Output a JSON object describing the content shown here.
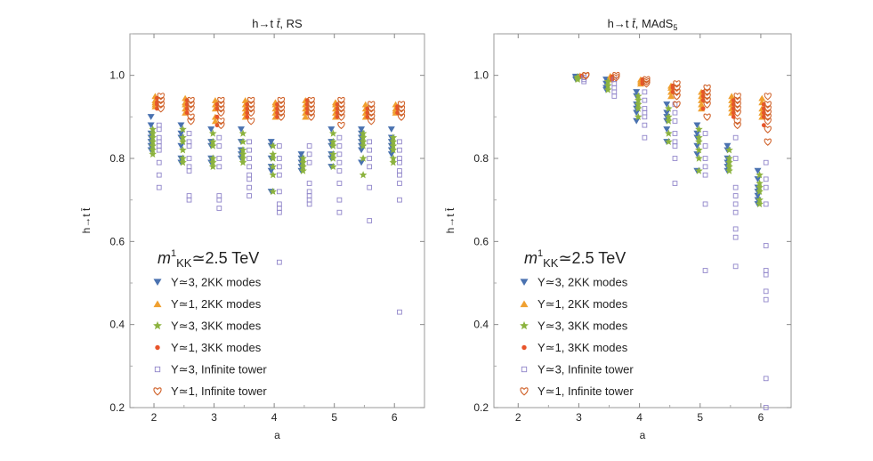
{
  "chart_data": [
    {
      "type": "scatter",
      "title_prefix": "h→t ",
      "title_tbar": "t̄",
      "title_suffix": ", RS",
      "xlabel": "a",
      "ylabel": "h→t t̄",
      "xlim": [
        1.6,
        6.5
      ],
      "ylim": [
        0.2,
        1.1
      ],
      "xticks": [
        2,
        3,
        4,
        5,
        6
      ],
      "yticks": [
        0.2,
        0.4,
        0.6,
        0.8,
        1.0
      ],
      "ytick_labels": [
        "0.2",
        "0.4",
        "0.6",
        "0.8",
        "1.0"
      ],
      "annotation": {
        "m": "m",
        "sup": "1",
        "sub": "KK",
        "rest": "≃2.5 TeV"
      },
      "groups": [
        {
          "a": 2.0,
          "Y3_2KK": [
            0.9,
            0.88,
            0.86,
            0.85,
            0.84,
            0.83,
            0.82
          ],
          "Y1_2KK": [
            0.95,
            0.94,
            0.935,
            0.93,
            0.925
          ],
          "Y3_3KK": [
            0.87,
            0.86,
            0.85,
            0.84,
            0.83,
            0.82,
            0.81
          ],
          "Y1_3KK": [
            0.945,
            0.935,
            0.93,
            0.92
          ],
          "Y3_inf": [
            0.88,
            0.87,
            0.85,
            0.84,
            0.83,
            0.82,
            0.79,
            0.76,
            0.73
          ],
          "Y1_inf": [
            0.95,
            0.94,
            0.93,
            0.92
          ]
        },
        {
          "a": 2.5,
          "Y3_2KK": [
            0.88,
            0.86,
            0.85,
            0.83,
            0.8,
            0.79
          ],
          "Y1_2KK": [
            0.945,
            0.935,
            0.93,
            0.92,
            0.91
          ],
          "Y3_3KK": [
            0.87,
            0.85,
            0.84,
            0.82,
            0.8,
            0.79
          ],
          "Y1_3KK": [
            0.94,
            0.93,
            0.92,
            0.91
          ],
          "Y3_inf": [
            0.86,
            0.84,
            0.83,
            0.8,
            0.78,
            0.77,
            0.71,
            0.7
          ],
          "Y1_inf": [
            0.94,
            0.93,
            0.92,
            0.9,
            0.89
          ]
        },
        {
          "a": 3.0,
          "Y3_2KK": [
            0.87,
            0.84,
            0.83,
            0.8,
            0.79
          ],
          "Y1_2KK": [
            0.94,
            0.93,
            0.92,
            0.9,
            0.89
          ],
          "Y3_3KK": [
            0.86,
            0.84,
            0.83,
            0.8,
            0.79,
            0.78
          ],
          "Y1_3KK": [
            0.93,
            0.92,
            0.9,
            0.88
          ],
          "Y3_inf": [
            0.85,
            0.83,
            0.8,
            0.78,
            0.71,
            0.7,
            0.68
          ],
          "Y1_inf": [
            0.94,
            0.93,
            0.92,
            0.91,
            0.89,
            0.88
          ]
        },
        {
          "a": 3.5,
          "Y3_2KK": [
            0.87,
            0.84,
            0.82,
            0.81,
            0.8
          ],
          "Y1_2KK": [
            0.94,
            0.93,
            0.92,
            0.91,
            0.9
          ],
          "Y3_3KK": [
            0.86,
            0.84,
            0.82,
            0.81,
            0.8,
            0.79
          ],
          "Y1_3KK": [
            0.93,
            0.92,
            0.91,
            0.9
          ],
          "Y3_inf": [
            0.84,
            0.82,
            0.8,
            0.78,
            0.76,
            0.75,
            0.73,
            0.71
          ],
          "Y1_inf": [
            0.94,
            0.93,
            0.92,
            0.91,
            0.89
          ]
        },
        {
          "a": 4.0,
          "Y3_2KK": [
            0.84,
            0.83,
            0.8,
            0.78,
            0.77,
            0.72
          ],
          "Y1_2KK": [
            0.935,
            0.93,
            0.92,
            0.91,
            0.9
          ],
          "Y3_3KK": [
            0.83,
            0.81,
            0.8,
            0.78,
            0.76,
            0.72
          ],
          "Y1_3KK": [
            0.93,
            0.92,
            0.91,
            0.9
          ],
          "Y3_inf": [
            0.83,
            0.8,
            0.78,
            0.76,
            0.72,
            0.69,
            0.68,
            0.67,
            0.55
          ],
          "Y1_inf": [
            0.94,
            0.93,
            0.92,
            0.91,
            0.9
          ]
        },
        {
          "a": 4.5,
          "Y3_2KK": [
            0.81,
            0.8,
            0.79,
            0.78,
            0.77
          ],
          "Y1_2KK": [
            0.94,
            0.93,
            0.92,
            0.91,
            0.9
          ],
          "Y3_3KK": [
            0.8,
            0.79,
            0.78,
            0.77
          ],
          "Y1_3KK": [
            0.94,
            0.93,
            0.92,
            0.91
          ],
          "Y3_inf": [
            0.83,
            0.81,
            0.79,
            0.74,
            0.72,
            0.71,
            0.7,
            0.69
          ],
          "Y1_inf": [
            0.94,
            0.93,
            0.92,
            0.91,
            0.9
          ]
        },
        {
          "a": 5.0,
          "Y3_2KK": [
            0.87,
            0.84,
            0.83,
            0.81,
            0.8,
            0.78
          ],
          "Y1_2KK": [
            0.935,
            0.93,
            0.92,
            0.91,
            0.9
          ],
          "Y3_3KK": [
            0.86,
            0.84,
            0.83,
            0.81,
            0.8,
            0.78
          ],
          "Y1_3KK": [
            0.93,
            0.92,
            0.91,
            0.9
          ],
          "Y3_inf": [
            0.85,
            0.83,
            0.81,
            0.79,
            0.77,
            0.74,
            0.7,
            0.67
          ],
          "Y1_inf": [
            0.94,
            0.93,
            0.92,
            0.91,
            0.9,
            0.88
          ]
        },
        {
          "a": 5.5,
          "Y3_2KK": [
            0.87,
            0.86,
            0.85,
            0.84,
            0.83,
            0.82,
            0.79
          ],
          "Y1_2KK": [
            0.93,
            0.92,
            0.91,
            0.9
          ],
          "Y3_3KK": [
            0.86,
            0.85,
            0.84,
            0.83,
            0.8,
            0.76
          ],
          "Y1_3KK": [
            0.92,
            0.91,
            0.9
          ],
          "Y3_inf": [
            0.84,
            0.82,
            0.8,
            0.78,
            0.73,
            0.65
          ],
          "Y1_inf": [
            0.93,
            0.92,
            0.91,
            0.9,
            0.89
          ]
        },
        {
          "a": 6.0,
          "Y3_2KK": [
            0.87,
            0.85,
            0.84,
            0.83,
            0.82,
            0.81
          ],
          "Y1_2KK": [
            0.93,
            0.92,
            0.915,
            0.91
          ],
          "Y3_3KK": [
            0.85,
            0.84,
            0.83,
            0.82,
            0.8,
            0.79
          ],
          "Y1_3KK": [
            0.925,
            0.92,
            0.91
          ],
          "Y3_inf": [
            0.84,
            0.82,
            0.8,
            0.79,
            0.77,
            0.76,
            0.74,
            0.7,
            0.43
          ],
          "Y1_inf": [
            0.93,
            0.92,
            0.91,
            0.9
          ]
        }
      ]
    },
    {
      "type": "scatter",
      "title_prefix": "h→t ",
      "title_tbar": "t̄",
      "title_suffix": ", MAdS",
      "title_sub": "5",
      "xlabel": "a",
      "ylabel": "h→t t̄",
      "xlim": [
        1.6,
        6.5
      ],
      "ylim": [
        0.2,
        1.1
      ],
      "xticks": [
        2,
        3,
        4,
        5,
        6
      ],
      "yticks": [
        0.2,
        0.4,
        0.6,
        0.8,
        1.0
      ],
      "ytick_labels": [
        "0.2",
        "0.4",
        "0.6",
        "0.8",
        "1.0"
      ],
      "annotation": {
        "m": "m",
        "sup": "1",
        "sub": "KK",
        "rest": "≃2.5 TeV"
      },
      "groups": [
        {
          "a": 3.0,
          "Y3_2KK": [
            0.997,
            0.995,
            0.99
          ],
          "Y1_2KK": [
            0.999,
            0.998
          ],
          "Y3_3KK": [
            0.996,
            0.993,
            0.99
          ],
          "Y1_3KK": [
            0.999,
            0.998
          ],
          "Y3_inf": [
            0.995,
            0.99,
            0.985
          ],
          "Y1_inf": [
            1.0,
            0.999
          ]
        },
        {
          "a": 3.5,
          "Y3_2KK": [
            0.99,
            0.98,
            0.97,
            0.965
          ],
          "Y1_2KK": [
            0.998,
            0.995,
            0.99
          ],
          "Y3_3KK": [
            0.985,
            0.975,
            0.965
          ],
          "Y1_3KK": [
            0.997,
            0.995,
            0.99
          ],
          "Y3_inf": [
            0.99,
            0.98,
            0.97,
            0.96,
            0.95
          ],
          "Y1_inf": [
            1.0,
            0.995
          ]
        },
        {
          "a": 4.0,
          "Y3_2KK": [
            0.96,
            0.95,
            0.93,
            0.92,
            0.91,
            0.89
          ],
          "Y1_2KK": [
            0.99,
            0.985,
            0.98
          ],
          "Y3_3KK": [
            0.95,
            0.94,
            0.93,
            0.92,
            0.9
          ],
          "Y1_3KK": [
            0.99,
            0.985,
            0.98
          ],
          "Y3_inf": [
            0.96,
            0.94,
            0.92,
            0.91,
            0.9,
            0.88,
            0.85
          ],
          "Y1_inf": [
            0.99,
            0.985,
            0.98
          ]
        },
        {
          "a": 4.5,
          "Y3_2KK": [
            0.93,
            0.91,
            0.9,
            0.89,
            0.87,
            0.84
          ],
          "Y1_2KK": [
            0.975,
            0.97,
            0.96,
            0.95
          ],
          "Y3_3KK": [
            0.92,
            0.9,
            0.89,
            0.86,
            0.84
          ],
          "Y1_3KK": [
            0.975,
            0.97,
            0.96
          ],
          "Y3_inf": [
            0.93,
            0.91,
            0.89,
            0.86,
            0.84,
            0.83,
            0.8,
            0.74
          ],
          "Y1_inf": [
            0.98,
            0.97,
            0.96,
            0.95,
            0.93
          ]
        },
        {
          "a": 5.0,
          "Y3_2KK": [
            0.88,
            0.86,
            0.85,
            0.83,
            0.81,
            0.77
          ],
          "Y1_2KK": [
            0.96,
            0.95,
            0.94,
            0.93,
            0.92
          ],
          "Y3_3KK": [
            0.87,
            0.85,
            0.84,
            0.82,
            0.8,
            0.77
          ],
          "Y1_3KK": [
            0.96,
            0.95,
            0.94,
            0.92
          ],
          "Y3_inf": [
            0.86,
            0.83,
            0.8,
            0.78,
            0.76,
            0.69,
            0.53
          ],
          "Y1_inf": [
            0.97,
            0.96,
            0.95,
            0.94,
            0.93,
            0.9
          ]
        },
        {
          "a": 5.5,
          "Y3_2KK": [
            0.83,
            0.82,
            0.8,
            0.79,
            0.78,
            0.77
          ],
          "Y1_2KK": [
            0.95,
            0.94,
            0.93,
            0.92,
            0.91
          ],
          "Y3_3KK": [
            0.82,
            0.8,
            0.79,
            0.78,
            0.77
          ],
          "Y1_3KK": [
            0.94,
            0.93,
            0.92,
            0.91,
            0.9
          ],
          "Y3_inf": [
            0.85,
            0.8,
            0.73,
            0.71,
            0.69,
            0.67,
            0.63,
            0.61,
            0.54
          ],
          "Y1_inf": [
            0.95,
            0.94,
            0.93,
            0.92,
            0.91,
            0.89,
            0.88
          ]
        },
        {
          "a": 6.0,
          "Y3_2KK": [
            0.77,
            0.75,
            0.73,
            0.72,
            0.71,
            0.7,
            0.69
          ],
          "Y1_2KK": [
            0.945,
            0.935,
            0.92,
            0.91,
            0.9
          ],
          "Y3_3KK": [
            0.76,
            0.74,
            0.73,
            0.72,
            0.7,
            0.69
          ],
          "Y1_3KK": [
            0.93,
            0.92,
            0.91,
            0.9,
            0.88
          ],
          "Y3_inf": [
            0.79,
            0.75,
            0.73,
            0.69,
            0.59,
            0.53,
            0.52,
            0.48,
            0.46,
            0.27,
            0.2
          ],
          "Y1_inf": [
            0.95,
            0.93,
            0.92,
            0.91,
            0.9,
            0.89,
            0.87,
            0.84
          ]
        }
      ]
    }
  ],
  "legend": {
    "placement": "bottom-left",
    "entries": [
      {
        "key": "Y3_2KK",
        "label": "Y≃3, 2KK modes",
        "marker": "triangle-down",
        "color": "#4a72b0"
      },
      {
        "key": "Y1_2KK",
        "label": "Y≃1, 2KK modes",
        "marker": "triangle-up",
        "color": "#f0a030"
      },
      {
        "key": "Y3_3KK",
        "label": "Y≃3, 3KK modes",
        "marker": "star",
        "color": "#8cb33f"
      },
      {
        "key": "Y1_3KK",
        "label": "Y≃1, 3KK modes",
        "marker": "circle",
        "color": "#e8542a"
      },
      {
        "key": "Y3_inf",
        "label": "Y≃3, Infinite tower",
        "marker": "open-square",
        "color": "#8f84c9"
      },
      {
        "key": "Y1_inf",
        "label": "Y≃1, Infinite tower",
        "marker": "open-heart",
        "color": "#d0622a"
      }
    ]
  }
}
